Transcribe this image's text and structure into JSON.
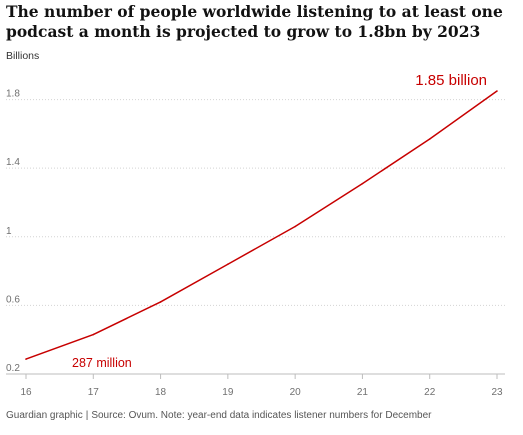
{
  "chart_data": {
    "type": "line",
    "title": "The number of people worldwide listening to at least one podcast a month is projected to grow to 1.8bn by 2023",
    "ylabel": "Billions",
    "x": [
      16,
      17,
      18,
      19,
      20,
      21,
      22,
      23
    ],
    "xlim": [
      16,
      23
    ],
    "ylim": [
      0.2,
      1.85
    ],
    "yticks": [
      0.2,
      0.6,
      1,
      1.4,
      1.8
    ],
    "ytick_labels": [
      "0.2",
      "0.6",
      "1",
      "1.4",
      "1.8"
    ],
    "xtick_labels": [
      "16",
      "17",
      "18",
      "19",
      "20",
      "21",
      "22",
      "23"
    ],
    "grid": "horizontal dotted",
    "series": [
      {
        "color": "#c70000",
        "values": [
          0.287,
          0.43,
          0.62,
          0.84,
          1.06,
          1.31,
          1.57,
          1.85
        ]
      }
    ],
    "annotations": [
      {
        "text": "1.85 billion",
        "x": 23,
        "y": 1.85
      },
      {
        "text": "287 million",
        "x": 16,
        "y": 0.287
      }
    ]
  },
  "footer": {
    "credit": "Guardian graphic",
    "separator": "|",
    "source": "Source: Ovum. Note: year-end data indicates listener numbers for December"
  }
}
